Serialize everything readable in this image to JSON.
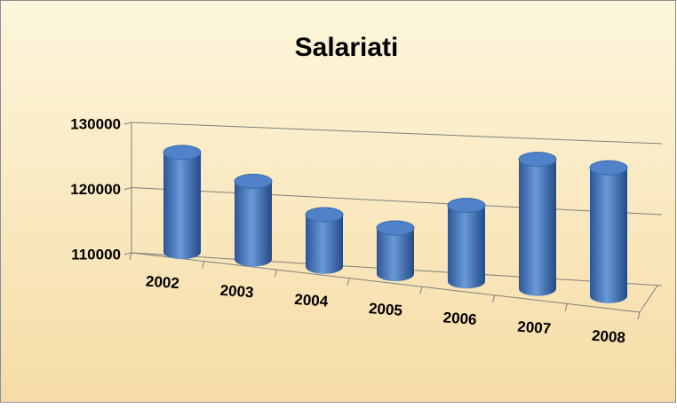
{
  "chart_data": {
    "type": "cylinder3d",
    "title": "Salariati",
    "categories": [
      "2002",
      "2003",
      "2004",
      "2005",
      "2006",
      "2007",
      "2008"
    ],
    "values": [
      125000,
      121500,
      117500,
      116500,
      120500,
      127500,
      127000
    ],
    "color": "#4a7fc6",
    "ylim": [
      110000,
      130000
    ],
    "yticks": [
      110000,
      120000,
      130000
    ],
    "grid": true
  }
}
